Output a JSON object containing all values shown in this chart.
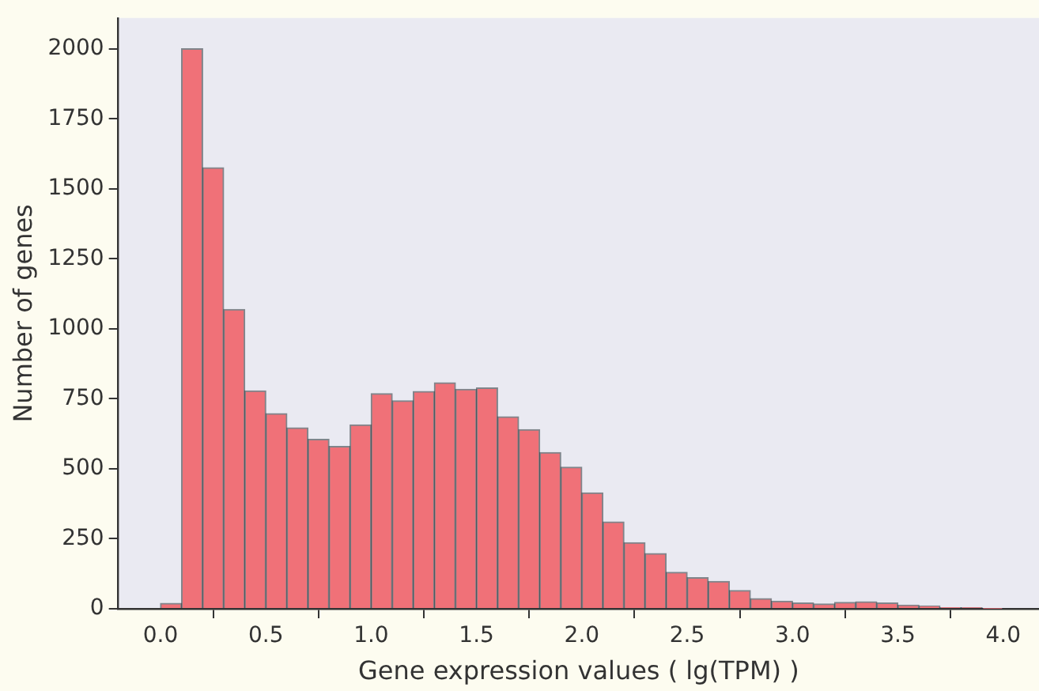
{
  "chart_data": {
    "type": "histogram",
    "xlabel": "Gene expression values ( lg(TPM) )",
    "ylabel": "Number of genes",
    "color": "#f07178",
    "bins": [
      0.0,
      0.1,
      0.2,
      0.3,
      0.4,
      0.5,
      0.6,
      0.7,
      0.8,
      0.9,
      1.0,
      1.1,
      1.2,
      1.3,
      1.4,
      1.5,
      1.6,
      1.7,
      1.8,
      1.9,
      2.0,
      2.1,
      2.2,
      2.3,
      2.4,
      2.5,
      2.6,
      2.7,
      2.8,
      2.9,
      3.0,
      3.1,
      3.2,
      3.3,
      3.4,
      3.5,
      3.6,
      3.7,
      3.8,
      3.9,
      4.0
    ],
    "values": [
      19,
      2000,
      1575,
      1069,
      778,
      697,
      646,
      605,
      580,
      657,
      768,
      743,
      776,
      807,
      784,
      789,
      686,
      640,
      558,
      506,
      414,
      310,
      236,
      197,
      130,
      111,
      98,
      65,
      36,
      27,
      21,
      17,
      23,
      25,
      21,
      13,
      10,
      4,
      4,
      2
    ],
    "xlim": [
      -0.2,
      4.17
    ],
    "xticks": [
      {
        "value": 0,
        "label": "0.0"
      },
      {
        "value": 0.5,
        "label": "0.5"
      },
      {
        "value": 1,
        "label": "1.0"
      },
      {
        "value": 1.5,
        "label": "1.5"
      },
      {
        "value": 2,
        "label": "2.0"
      },
      {
        "value": 2.5,
        "label": "2.5"
      },
      {
        "value": 3,
        "label": "3.0"
      },
      {
        "value": 3.5,
        "label": "3.5"
      },
      {
        "value": 4,
        "label": "4.0"
      }
    ],
    "ylim": [
      0,
      2110
    ],
    "yticks": [
      0,
      250,
      500,
      750,
      1000,
      1250,
      1500,
      1750,
      2000
    ],
    "grid": false,
    "legend": false
  }
}
